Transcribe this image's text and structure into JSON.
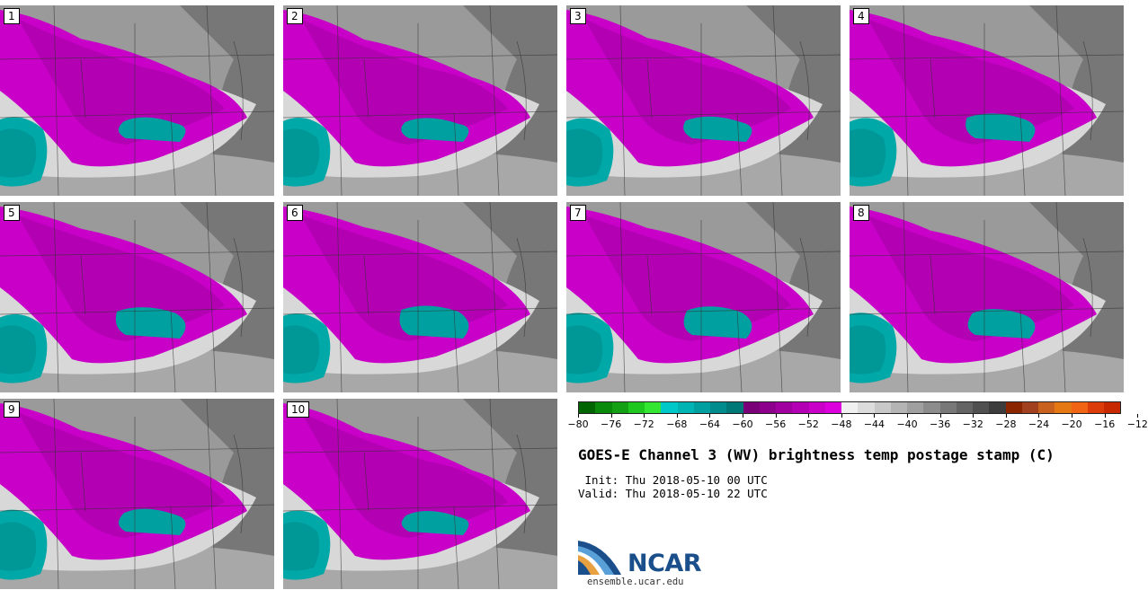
{
  "panels": [
    {
      "label": "1"
    },
    {
      "label": "2"
    },
    {
      "label": "3"
    },
    {
      "label": "4"
    },
    {
      "label": "5"
    },
    {
      "label": "6"
    },
    {
      "label": "7"
    },
    {
      "label": "8"
    },
    {
      "label": "9"
    },
    {
      "label": "10"
    }
  ],
  "colorbar": {
    "colors": [
      "#006400",
      "#0a8a0a",
      "#14a014",
      "#1ec81e",
      "#32e632",
      "#00c8c8",
      "#00b4b4",
      "#00a0a0",
      "#008c8c",
      "#007878",
      "#7a0078",
      "#8c008c",
      "#a000a0",
      "#b400b4",
      "#c800c8",
      "#dc00dc",
      "#f0f0f0",
      "#dcdcdc",
      "#c8c8c8",
      "#b4b4b4",
      "#a0a0a0",
      "#8c8c8c",
      "#787878",
      "#646464",
      "#505050",
      "#3c3c3c",
      "#8b2500",
      "#a0401e",
      "#c8601e",
      "#e67814",
      "#f06414",
      "#dc3c0a",
      "#c82800"
    ],
    "tick_labels": [
      "−80",
      "−76",
      "−72",
      "−68",
      "−64",
      "−60",
      "−56",
      "−52",
      "−48",
      "−44",
      "−40",
      "−36",
      "−32",
      "−28",
      "−24",
      "−20",
      "−16",
      "−12"
    ]
  },
  "title": "GOES-E Channel 3 (WV) brightness temp postage stamp (C)",
  "init": " Init: Thu 2018-05-10 00 UTC",
  "valid": "Valid: Thu 2018-05-10 22 UTC",
  "logo": {
    "text": "NCAR",
    "url": "ensemble.ucar.edu"
  }
}
